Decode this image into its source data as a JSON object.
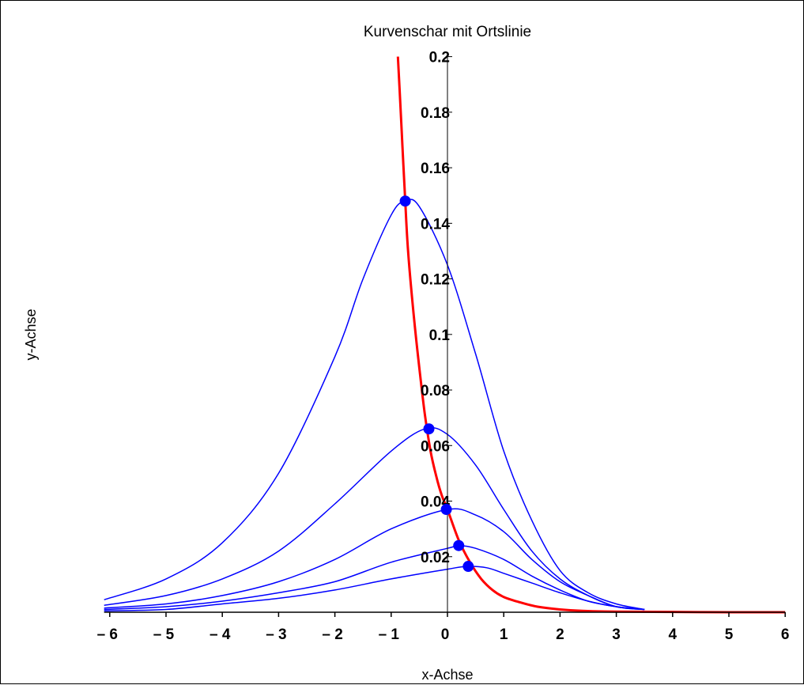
{
  "chart_data": {
    "type": "line",
    "title": "Kurvenschar mit Ortslinie",
    "xlabel": "x-Achse",
    "ylabel": "y-Achse",
    "xlim": [
      -6.1,
      6
    ],
    "ylim": [
      0,
      0.2
    ],
    "grid": false,
    "x_ticks": [
      -6,
      -5,
      -4,
      -3,
      -2,
      -1,
      0,
      1,
      2,
      3,
      4,
      5,
      6
    ],
    "x_tick_labels": [
      "– 6",
      "– 5",
      "– 4",
      "– 3",
      "– 2",
      "– 1",
      "0",
      "1",
      "2",
      "3",
      "4",
      "5",
      "6"
    ],
    "y_ticks": [
      0.02,
      0.04,
      0.06,
      0.08,
      0.1,
      0.12,
      0.14,
      0.16,
      0.18,
      0.2
    ],
    "y_tick_labels": [
      "0.02",
      "0.04",
      "0.06",
      "0.08",
      "0.1",
      "0.12",
      "0.14",
      "0.16",
      "0.18",
      "0.2"
    ],
    "colors": {
      "family": "#0000ff",
      "locus": "#ff0000",
      "points": "#0000ff",
      "axes": "#000000"
    },
    "series": [
      {
        "role": "family",
        "x": [
          -6.1,
          -5,
          -4,
          -3,
          -2,
          -1.5,
          -1,
          -0.75,
          -0.5,
          0,
          0.5,
          1,
          1.5,
          2,
          2.5,
          3,
          3.5
        ],
        "y": [
          0.0045,
          0.012,
          0.025,
          0.05,
          0.092,
          0.12,
          0.143,
          0.148,
          0.146,
          0.125,
          0.093,
          0.058,
          0.033,
          0.015,
          0.007,
          0.003,
          0.001
        ]
      },
      {
        "role": "family",
        "x": [
          -6.1,
          -5,
          -4,
          -3,
          -2,
          -1,
          -0.4,
          0,
          0.5,
          1,
          1.5,
          2,
          2.5,
          3,
          3.5
        ],
        "y": [
          0.0025,
          0.006,
          0.012,
          0.022,
          0.039,
          0.058,
          0.066,
          0.064,
          0.053,
          0.037,
          0.022,
          0.012,
          0.006,
          0.002,
          0.001
        ]
      },
      {
        "role": "family",
        "x": [
          -6.1,
          -5,
          -4,
          -3,
          -2,
          -1,
          0,
          0.5,
          1,
          1.5,
          2,
          2.5,
          3,
          3.5
        ],
        "y": [
          0.0015,
          0.003,
          0.006,
          0.011,
          0.019,
          0.03,
          0.037,
          0.035,
          0.029,
          0.019,
          0.011,
          0.006,
          0.002,
          0.001
        ]
      },
      {
        "role": "family",
        "x": [
          -6.1,
          -5,
          -4,
          -3,
          -2,
          -1,
          0,
          0.2,
          0.5,
          1,
          1.5,
          2,
          2.5,
          3,
          3.5
        ],
        "y": [
          0.001,
          0.002,
          0.004,
          0.007,
          0.011,
          0.018,
          0.023,
          0.024,
          0.023,
          0.019,
          0.013,
          0.008,
          0.004,
          0.002,
          0.001
        ]
      },
      {
        "role": "family",
        "x": [
          -6.1,
          -5,
          -4,
          -3,
          -2,
          -1,
          0,
          0.35,
          0.7,
          1,
          1.5,
          2,
          2.5,
          3,
          3.5
        ],
        "y": [
          0.0005,
          0.001,
          0.003,
          0.005,
          0.008,
          0.012,
          0.0155,
          0.0165,
          0.016,
          0.014,
          0.0105,
          0.007,
          0.004,
          0.002,
          0.001
        ]
      },
      {
        "role": "locus",
        "x": [
          -0.88,
          -0.85,
          -0.8,
          -0.75,
          -0.7,
          -0.6,
          -0.5,
          -0.4,
          -0.3,
          -0.2,
          -0.1,
          0,
          0.2,
          0.4,
          0.6,
          0.8,
          1,
          1.3,
          1.6,
          2,
          2.4,
          3,
          4,
          5,
          6
        ],
        "y": [
          0.2,
          0.188,
          0.168,
          0.148,
          0.13,
          0.107,
          0.088,
          0.071,
          0.058,
          0.049,
          0.042,
          0.037,
          0.026,
          0.018,
          0.012,
          0.008,
          0.0055,
          0.0035,
          0.002,
          0.001,
          0.0005,
          0.0002,
          0.0001,
          0,
          0
        ]
      }
    ],
    "points": [
      {
        "x": -0.75,
        "y": 0.148
      },
      {
        "x": -0.33,
        "y": 0.066
      },
      {
        "x": -0.02,
        "y": 0.037
      },
      {
        "x": 0.2,
        "y": 0.024
      },
      {
        "x": 0.37,
        "y": 0.0165
      }
    ]
  }
}
